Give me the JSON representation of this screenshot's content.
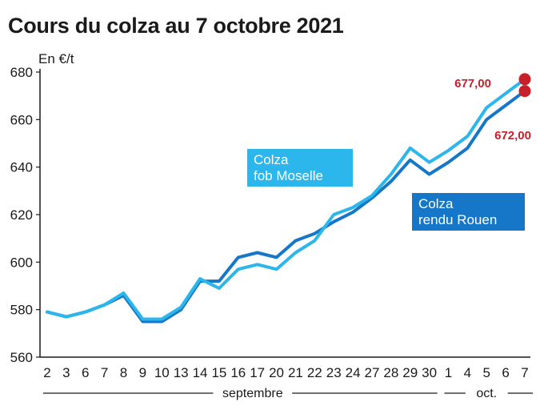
{
  "chart_data": {
    "type": "line",
    "title": "Cours du colza au 7 octobre 2021",
    "unit_label": "En €/t",
    "ylim": [
      560,
      680
    ],
    "yticks": [
      560,
      580,
      600,
      620,
      640,
      660,
      680
    ],
    "x": [
      "2",
      "3",
      "6",
      "7",
      "8",
      "9",
      "10",
      "13",
      "14",
      "15",
      "16",
      "17",
      "20",
      "21",
      "22",
      "23",
      "24",
      "27",
      "28",
      "29",
      "30",
      "1",
      "4",
      "5",
      "6",
      "7"
    ],
    "month_groups": [
      {
        "label": "septembre",
        "start": 0,
        "end": 20
      },
      {
        "label": "oct.",
        "start": 21,
        "end": 25
      }
    ],
    "grid": false,
    "series": [
      {
        "name": "Colza rendu Rouen",
        "name_lines": [
          "Colza",
          "rendu Rouen"
        ],
        "color": "#1677c8",
        "values": [
          579,
          577,
          579,
          582,
          586,
          575,
          575,
          580,
          592,
          592,
          602,
          604,
          602,
          609,
          612,
          617,
          621,
          627,
          634,
          643,
          637,
          642,
          648,
          660,
          666,
          672
        ],
        "end_label": "672,00"
      },
      {
        "name": "Colza fob Moselle",
        "name_lines": [
          "Colza",
          "fob Moselle"
        ],
        "color": "#2bb6ec",
        "values": [
          579,
          577,
          579,
          582,
          587,
          576,
          576,
          581,
          593,
          589,
          597,
          599,
          597,
          604,
          609,
          620,
          623,
          628,
          637,
          648,
          642,
          647,
          653,
          665,
          671,
          677
        ],
        "end_label": "677,00"
      }
    ],
    "end_marker_color": "#c8202a"
  }
}
